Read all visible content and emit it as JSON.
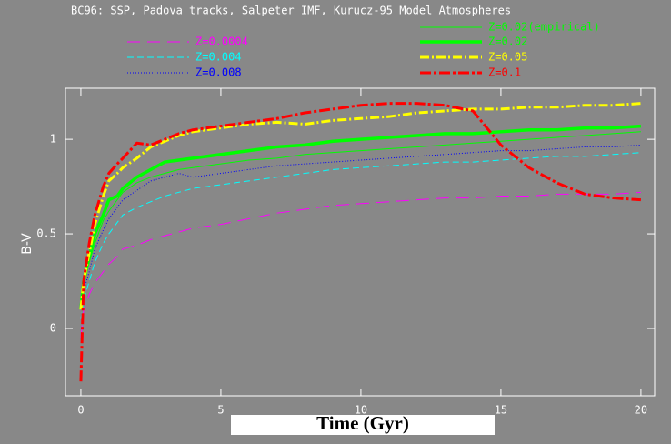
{
  "chart_data": {
    "type": "line",
    "title": "BC96: SSP, Padova tracks, Salpeter IMF, Kurucz-95 Model Atmospheres",
    "x_label": "Time (Gyr)",
    "y_label": "B-V",
    "x": [
      0,
      0.1,
      0.3,
      0.5,
      0.8,
      1,
      1.3,
      1.5,
      2,
      2.5,
      3,
      3.5,
      4,
      5,
      6,
      7,
      8,
      9,
      10,
      11,
      12,
      13,
      14,
      15,
      16,
      17,
      18,
      19,
      20
    ],
    "xlim": [
      -0.55,
      20.49
    ],
    "ylim": [
      -0.356,
      1.27
    ],
    "xticks": [
      0,
      5,
      10,
      15,
      20
    ],
    "yticks": [
      0,
      0.5,
      1
    ],
    "series": [
      {
        "name": "Z=0.0004",
        "color": "#ff00ff",
        "dash": "14,8",
        "line_width": 1,
        "values": [
          -0.05,
          0.1,
          0.18,
          0.24,
          0.3,
          0.34,
          0.38,
          0.42,
          0.44,
          0.47,
          0.49,
          0.51,
          0.53,
          0.55,
          0.58,
          0.61,
          0.63,
          0.65,
          0.66,
          0.67,
          0.68,
          0.69,
          0.69,
          0.7,
          0.7,
          0.71,
          0.71,
          0.71,
          0.72
        ]
      },
      {
        "name": "Z=0.004",
        "color": "#00ffff",
        "dash": "7,4",
        "line_width": 1,
        "values": [
          0.05,
          0.15,
          0.25,
          0.35,
          0.45,
          0.5,
          0.56,
          0.6,
          0.64,
          0.67,
          0.7,
          0.72,
          0.74,
          0.76,
          0.78,
          0.8,
          0.82,
          0.84,
          0.85,
          0.86,
          0.87,
          0.88,
          0.88,
          0.89,
          0.9,
          0.91,
          0.91,
          0.92,
          0.93
        ]
      },
      {
        "name": "Z=0.008",
        "color": "#0000ff",
        "dash": "1,2",
        "line_width": 1,
        "values": [
          0.1,
          0.2,
          0.3,
          0.42,
          0.52,
          0.58,
          0.64,
          0.68,
          0.73,
          0.78,
          0.8,
          0.82,
          0.8,
          0.82,
          0.84,
          0.86,
          0.87,
          0.88,
          0.89,
          0.9,
          0.91,
          0.92,
          0.93,
          0.94,
          0.94,
          0.95,
          0.96,
          0.96,
          0.97
        ]
      },
      {
        "name": "Z=0.02(empirical)",
        "color": "#00ff00",
        "dash": "none",
        "line_width": 1,
        "values": [
          0.1,
          0.25,
          0.35,
          0.45,
          0.57,
          0.62,
          0.68,
          0.72,
          0.77,
          0.8,
          0.82,
          0.84,
          0.85,
          0.87,
          0.89,
          0.9,
          0.92,
          0.93,
          0.94,
          0.95,
          0.96,
          0.97,
          0.98,
          0.99,
          1.0,
          1.01,
          1.02,
          1.03,
          1.04
        ]
      },
      {
        "name": "Z=0.02",
        "color": "#00ff00",
        "dash": "none",
        "line_width": 3.5,
        "values": [
          0.1,
          0.25,
          0.38,
          0.5,
          0.6,
          0.68,
          0.7,
          0.74,
          0.8,
          0.84,
          0.88,
          0.89,
          0.9,
          0.92,
          0.94,
          0.96,
          0.97,
          0.99,
          1.0,
          1.01,
          1.02,
          1.03,
          1.03,
          1.04,
          1.05,
          1.05,
          1.06,
          1.06,
          1.07
        ]
      },
      {
        "name": "Z=0.05",
        "color": "#ffff00",
        "dash": "10,3,2,3",
        "line_width": 3,
        "values": [
          0.1,
          0.25,
          0.4,
          0.55,
          0.7,
          0.78,
          0.82,
          0.85,
          0.9,
          0.96,
          0.99,
          1.02,
          1.04,
          1.06,
          1.08,
          1.09,
          1.08,
          1.1,
          1.11,
          1.12,
          1.14,
          1.15,
          1.16,
          1.16,
          1.17,
          1.17,
          1.18,
          1.18,
          1.19
        ]
      },
      {
        "name": "Z=0.1",
        "color": "#ff0000",
        "dash": "12,3,3,3",
        "line_width": 3,
        "values": [
          -0.28,
          0.25,
          0.45,
          0.6,
          0.75,
          0.82,
          0.87,
          0.9,
          0.98,
          0.97,
          1.0,
          1.03,
          1.05,
          1.07,
          1.09,
          1.11,
          1.14,
          1.16,
          1.18,
          1.19,
          1.19,
          1.18,
          1.15,
          0.97,
          0.85,
          0.77,
          0.71,
          0.69,
          0.68
        ]
      }
    ]
  }
}
